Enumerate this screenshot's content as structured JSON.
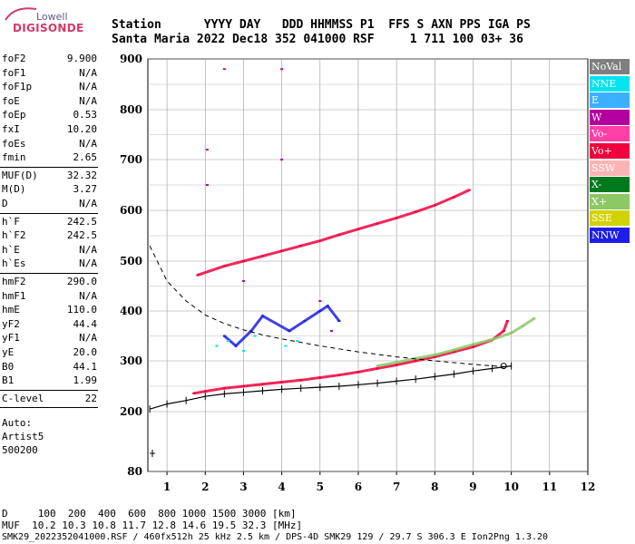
{
  "logo": {
    "top": "Lowell",
    "main": "DIGISONDE"
  },
  "header": {
    "line1": "Station      YYYY DAY   DDD HHMMSS P1  FFS S AXN PPS IGA PS",
    "line2": "Santa Maria 2022 Dec18 352 041000 RSF     1 711 100 03+ 36"
  },
  "params_group1": [
    {
      "name": "foF2",
      "value": "9.900"
    },
    {
      "name": "foF1",
      "value": "N/A"
    },
    {
      "name": "foF1p",
      "value": "N/A"
    },
    {
      "name": "foE",
      "value": "N/A"
    },
    {
      "name": "foEp",
      "value": "0.53"
    },
    {
      "name": "fxI",
      "value": "10.20"
    },
    {
      "name": "foEs",
      "value": "N/A"
    },
    {
      "name": "fmin",
      "value": "2.65"
    }
  ],
  "params_group2": [
    {
      "name": "MUF(D)",
      "value": "32.32"
    },
    {
      "name": "M(D)",
      "value": "3.27"
    },
    {
      "name": "D",
      "value": "N/A"
    }
  ],
  "params_group3": [
    {
      "name": "h`F",
      "value": "242.5"
    },
    {
      "name": "h`F2",
      "value": "242.5"
    },
    {
      "name": "h`E",
      "value": "N/A"
    },
    {
      "name": "h`Es",
      "value": "N/A"
    }
  ],
  "params_group4": [
    {
      "name": "hmF2",
      "value": "290.0"
    },
    {
      "name": "hmF1",
      "value": "N/A"
    },
    {
      "name": "hmE",
      "value": "110.0"
    },
    {
      "name": "yF2",
      "value": "44.4"
    },
    {
      "name": "yF1",
      "value": "N/A"
    },
    {
      "name": "yE",
      "value": "20.0"
    },
    {
      "name": "B0",
      "value": "44.1"
    },
    {
      "name": "B1",
      "value": "1.99"
    }
  ],
  "params_group5": [
    {
      "name": "C-level",
      "value": "22"
    }
  ],
  "autoscale": {
    "line1": "Auto:",
    "line2": "Artist5",
    "line3": "500200"
  },
  "legend": [
    {
      "label": "NoVal",
      "color": "#7f7f7f"
    },
    {
      "label": "NNE",
      "color": "#00e4f0"
    },
    {
      "label": "E",
      "color": "#3ab0ff"
    },
    {
      "label": "W",
      "color": "#b400a0"
    },
    {
      "label": "Vo-",
      "color": "#ff3fa5"
    },
    {
      "label": "Vo+",
      "color": "#f0003c"
    },
    {
      "label": "SSW",
      "color": "#ffb4b4"
    },
    {
      "label": "X-",
      "color": "#00781e"
    },
    {
      "label": "X+",
      "color": "#8cc864"
    },
    {
      "label": "SSE",
      "color": "#d2d200"
    },
    {
      "label": "NNW",
      "color": "#1e1ee6"
    }
  ],
  "chart_data": {
    "type": "scatter",
    "title": "",
    "xlabel": "",
    "ylabel": "",
    "x_ticks": [
      "1",
      "2",
      "3",
      "4",
      "5",
      "6",
      "7",
      "8",
      "9",
      "10",
      "11",
      "12"
    ],
    "y_ticks": [
      "80",
      "200",
      "300",
      "400",
      "500",
      "600",
      "700",
      "800",
      "900"
    ],
    "xlim": [
      0.5,
      12
    ],
    "ylim_virtual_height_km": [
      80,
      900
    ],
    "series": [
      {
        "name": "Vo+",
        "color": "#f0003c",
        "points": [
          [
            1.7,
            236
          ],
          [
            2,
            240
          ],
          [
            2.5,
            246
          ],
          [
            3,
            250
          ],
          [
            3.5,
            254
          ],
          [
            4,
            258
          ],
          [
            4.5,
            262
          ],
          [
            5,
            267
          ],
          [
            5.5,
            272
          ],
          [
            6,
            278
          ],
          [
            6.5,
            285
          ],
          [
            7,
            292
          ],
          [
            7.5,
            300
          ],
          [
            8,
            308
          ],
          [
            8.5,
            318
          ],
          [
            9,
            328
          ],
          [
            9.5,
            342
          ],
          [
            9.8,
            360
          ],
          [
            9.9,
            380
          ]
        ]
      },
      {
        "name": "Vo+",
        "color": "#f0003c",
        "points": [
          [
            1.8,
            472
          ],
          [
            2.5,
            490
          ],
          [
            3,
            500
          ],
          [
            3.5,
            510
          ],
          [
            4,
            520
          ],
          [
            4.5,
            530
          ],
          [
            5,
            540
          ],
          [
            5.5,
            552
          ],
          [
            6,
            563
          ],
          [
            6.5,
            574
          ],
          [
            7,
            585
          ],
          [
            7.5,
            597
          ],
          [
            8,
            610
          ],
          [
            8.5,
            626
          ],
          [
            8.9,
            640
          ]
        ]
      },
      {
        "name": "X+",
        "color": "#8cc864",
        "points": [
          [
            6.5,
            290
          ],
          [
            7,
            297
          ],
          [
            7.5,
            305
          ],
          [
            8,
            312
          ],
          [
            8.5,
            322
          ],
          [
            9,
            333
          ],
          [
            9.5,
            343
          ],
          [
            10,
            356
          ],
          [
            10.3,
            370
          ],
          [
            10.6,
            385
          ]
        ]
      },
      {
        "name": "W",
        "color": "#b400a0",
        "points": [
          [
            2.05,
            650
          ],
          [
            2.05,
            720
          ],
          [
            2.5,
            880
          ],
          [
            3,
            460
          ],
          [
            4,
            880
          ],
          [
            4,
            700
          ],
          [
            5,
            420
          ],
          [
            5.3,
            360
          ]
        ]
      },
      {
        "name": "NNW",
        "color": "#1e1ee6",
        "points": [
          [
            2.5,
            350
          ],
          [
            2.8,
            330
          ],
          [
            3.2,
            360
          ],
          [
            3.5,
            390
          ],
          [
            4.2,
            360
          ],
          [
            4.6,
            380
          ],
          [
            5,
            400
          ],
          [
            5.2,
            410
          ],
          [
            5.5,
            380
          ]
        ]
      },
      {
        "name": "NNE",
        "color": "#00e4f0",
        "points": [
          [
            2.3,
            330
          ],
          [
            2.6,
            340
          ],
          [
            3,
            320
          ],
          [
            3.3,
            350
          ],
          [
            4.1,
            330
          ],
          [
            4.4,
            340
          ]
        ]
      }
    ],
    "profile_curve_x": [
      0.55,
      1,
      1.5,
      2,
      2.5,
      3,
      3.5,
      4,
      5,
      6,
      7,
      8,
      9,
      9.9
    ],
    "profile_curve_y": [
      530,
      460,
      420,
      392,
      375,
      362,
      352,
      344,
      330,
      318,
      308,
      300,
      293,
      288
    ],
    "trace_x": [
      0.55,
      1,
      1.5,
      2,
      2.5,
      3,
      3.5,
      4,
      4.5,
      5,
      5.5,
      6,
      6.5,
      7,
      7.5,
      8,
      8.5,
      9,
      9.5,
      10
    ],
    "trace_y": [
      205,
      215,
      222,
      230,
      235,
      238,
      241,
      244,
      246,
      248,
      250,
      253,
      256,
      260,
      264,
      269,
      274,
      280,
      285,
      290
    ],
    "trace_end_marker": [
      9.8,
      290
    ]
  },
  "footer": {
    "line1": "D     100  200  400  600  800 1000 1500 3000 [km]",
    "line2": "MUF  10.2 10.3 10.8 11.7 12.8 14.6 19.5 32.3 [MHz]",
    "line3": "SMK29_2022352041000.RSF / 460fx512h 25 kHz 2.5 km / DPS-4D SMK29 129 / 29.7 S 306.3 E Ion2Png 1.3.20"
  }
}
